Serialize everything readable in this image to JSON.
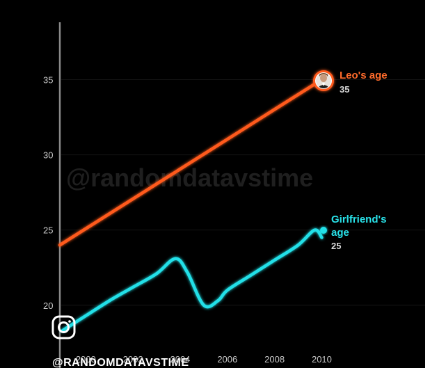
{
  "chart_data": {
    "type": "line",
    "x": [
      1999,
      2000,
      2001,
      2002,
      2003,
      2003.8,
      2004.3,
      2005,
      2005.6,
      2006,
      2007,
      2008,
      2009,
      2009.7,
      2010
    ],
    "xticks": [
      "2000",
      "2002",
      "2004",
      "2006",
      "2008",
      "2010"
    ],
    "yticks": [
      "20",
      "25",
      "30",
      "35"
    ],
    "ylim": [
      18,
      39
    ],
    "xlim": [
      1998.9,
      2010.4
    ],
    "grid": true,
    "series": [
      {
        "name": "Leo's age",
        "color": "#ff5a1f",
        "x": [
          1999,
          2010
        ],
        "values": [
          24,
          35
        ],
        "end_label": "35"
      },
      {
        "name": "Girlfriend's age",
        "color": "#22e0e8",
        "x": [
          1999,
          2000,
          2001,
          2002,
          2003,
          2003.8,
          2004.3,
          2005,
          2005.6,
          2006,
          2007,
          2008,
          2009,
          2009.7,
          2010
        ],
        "values": [
          18.3,
          19.3,
          20.3,
          21.2,
          22.1,
          23.1,
          22.2,
          20.0,
          20.3,
          21.0,
          22.0,
          23.0,
          24.0,
          25.0,
          24.5
        ],
        "end_label": "25"
      }
    ]
  },
  "watermark": "@randomdatavstime",
  "handle": "@RANDOMDATAVSTIME",
  "icons": {
    "social": "instagram-icon",
    "avatar": "leo-portrait-avatar"
  }
}
